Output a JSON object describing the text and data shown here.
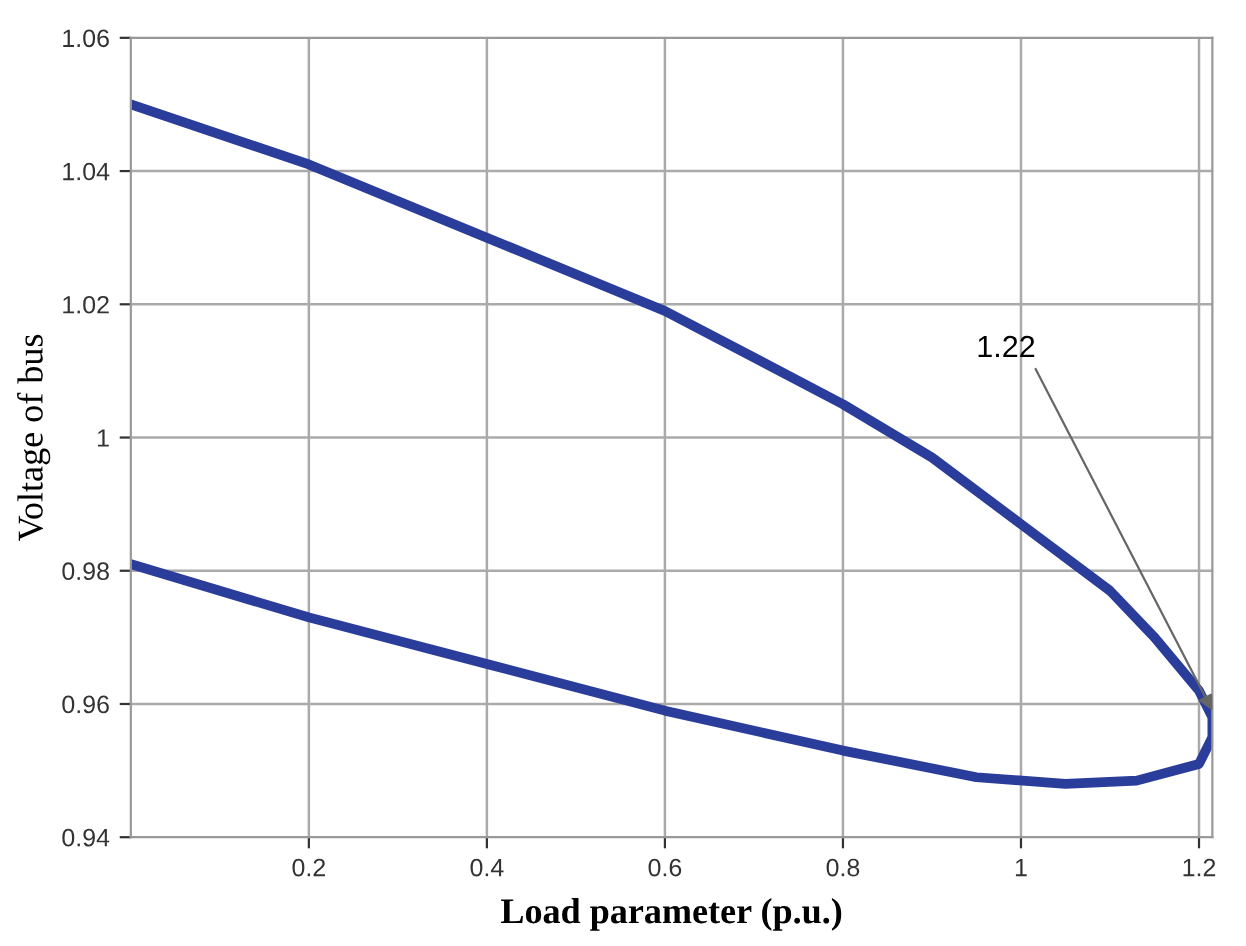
{
  "chart_data": {
    "type": "line",
    "xlabel": "Load parameter (p.u.)",
    "ylabel": "Voltage of bus",
    "series": [
      {
        "color": "#2b3d9b",
        "x": [
          0,
          0.2,
          0.4,
          0.6,
          0.8,
          0.9,
          1.0,
          1.1,
          1.15,
          1.2,
          1.215,
          1.215,
          1.2,
          1.13,
          1.05,
          0.95,
          0.8,
          0.6,
          0.4,
          0.2,
          0
        ],
        "values": [
          1.05,
          1.041,
          1.03,
          1.019,
          1.005,
          0.997,
          0.987,
          0.977,
          0.97,
          0.962,
          0.958,
          0.955,
          0.951,
          0.9485,
          0.948,
          0.949,
          0.953,
          0.959,
          0.966,
          0.973,
          0.981
        ]
      }
    ],
    "xlim": [
      0,
      1.215
    ],
    "xticks": [
      0.2,
      0.4,
      0.6,
      0.8,
      1,
      {
        "value": 1.2,
        "label": "1.2"
      }
    ],
    "ylim": [
      0.94,
      1.06
    ],
    "yticks": [
      0.94,
      0.96,
      0.98,
      1,
      1.02,
      1.04,
      1.06
    ],
    "grid": true,
    "marker": "none",
    "line_style": "solid",
    "annotations": [
      {
        "text": "1.22",
        "x": 1.215,
        "y": 0.959
      }
    ]
  }
}
